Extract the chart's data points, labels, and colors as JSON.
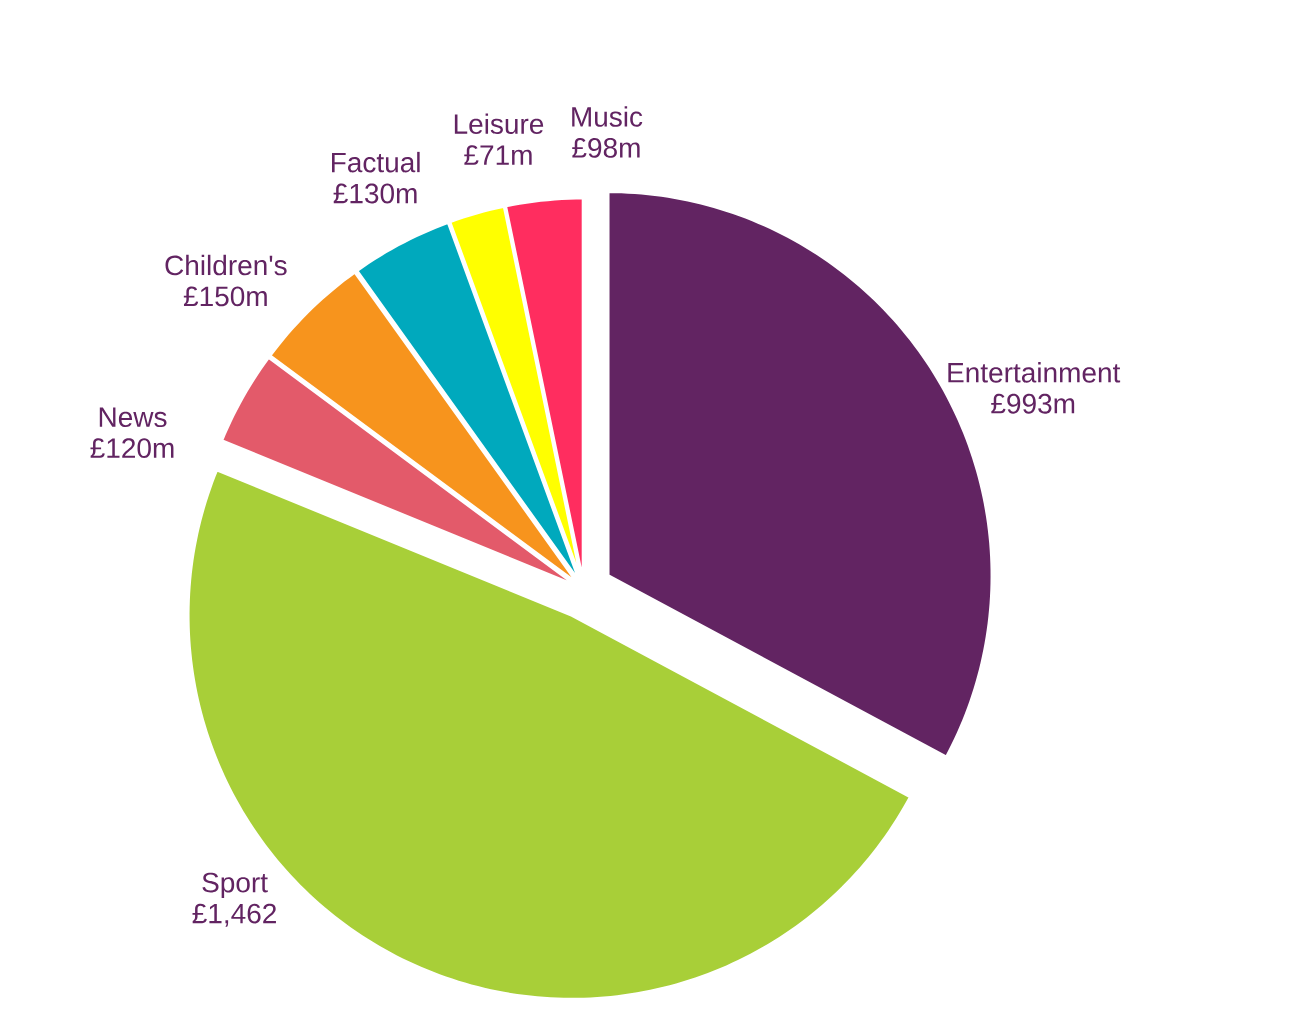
{
  "chart_data": {
    "type": "pie",
    "categories": [
      "Entertainment",
      "Sport",
      "News",
      "Children's",
      "Factual",
      "Leisure",
      "Music"
    ],
    "values": [
      993,
      1462,
      120,
      150,
      130,
      71,
      98
    ],
    "value_labels": [
      "£993m",
      "£1,462",
      "£120m",
      "£150m",
      "£130m",
      "£71m",
      "£98m"
    ],
    "colors": [
      "#622462",
      "#a8cf38",
      "#e35a6a",
      "#f7941d",
      "#00a9bd",
      "#ffff00",
      "#ff2d5f"
    ]
  }
}
